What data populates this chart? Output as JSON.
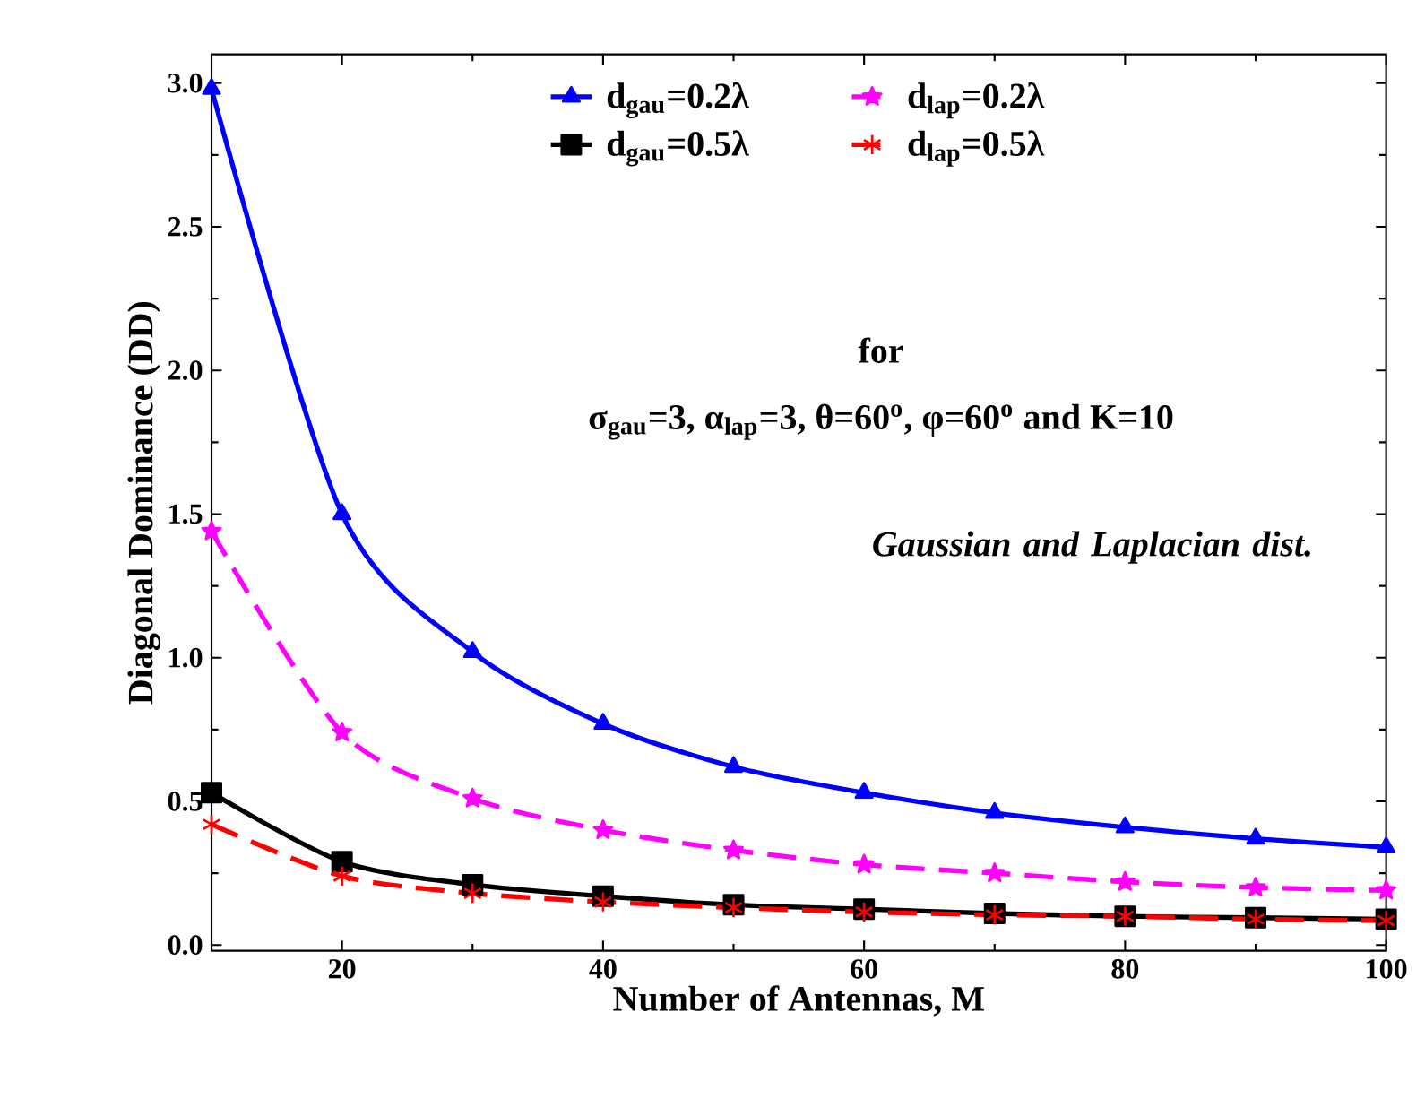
{
  "chart_data": {
    "type": "line",
    "xlabel": "Number of Antennas, M",
    "ylabel": "Diagonal Dominance (DD)",
    "x": [
      10,
      20,
      30,
      40,
      50,
      60,
      70,
      80,
      90,
      100
    ],
    "series": [
      {
        "name": "d$_{gau}$=0.2λ",
        "color": "#0000ff",
        "marker": "triangle",
        "line_style": "solid",
        "values": [
          2.98,
          1.5,
          1.02,
          0.77,
          0.62,
          0.53,
          0.46,
          0.41,
          0.37,
          0.34
        ]
      },
      {
        "name": "d$_{lap}$=0.2λ",
        "color": "#ff00ff",
        "marker": "star",
        "line_style": "dashed",
        "values": [
          1.44,
          0.74,
          0.51,
          0.4,
          0.33,
          0.28,
          0.25,
          0.22,
          0.2,
          0.19
        ]
      },
      {
        "name": "d$_{gau}$=0.5λ",
        "color": "#000000",
        "marker": "square",
        "line_style": "solid",
        "values": [
          0.53,
          0.29,
          0.21,
          0.17,
          0.14,
          0.125,
          0.11,
          0.1,
          0.095,
          0.09
        ]
      },
      {
        "name": "d$_{lap}$=0.5λ",
        "color": "#ff0000",
        "marker": "cross",
        "line_style": "dashed",
        "values": [
          0.42,
          0.24,
          0.18,
          0.15,
          0.13,
          0.115,
          0.105,
          0.1,
          0.09,
          0.085
        ]
      }
    ],
    "xlim": [
      10,
      100
    ],
    "ylim": [
      -0.02,
      3.1
    ],
    "xticks": [
      20,
      40,
      60,
      80,
      100
    ],
    "yticks": [
      {
        "value": 0,
        "label": "0.0"
      },
      {
        "value": 0.5,
        "label": "0.5"
      },
      {
        "value": 1,
        "label": "1.0"
      },
      {
        "value": 1.5,
        "label": "1.5"
      },
      {
        "value": 2,
        "label": "2.0"
      },
      {
        "value": 2.5,
        "label": "2.5"
      },
      {
        "value": 3,
        "label": "3.0"
      }
    ],
    "legend": "top",
    "grid": false,
    "annotations": [
      "for",
      "σ$_{gau}$=3, α$_{lap}$=3, θ=60$^{o}$, φ=60$^{o}$  and K=10",
      "Gaussian and Laplacian dist."
    ]
  }
}
